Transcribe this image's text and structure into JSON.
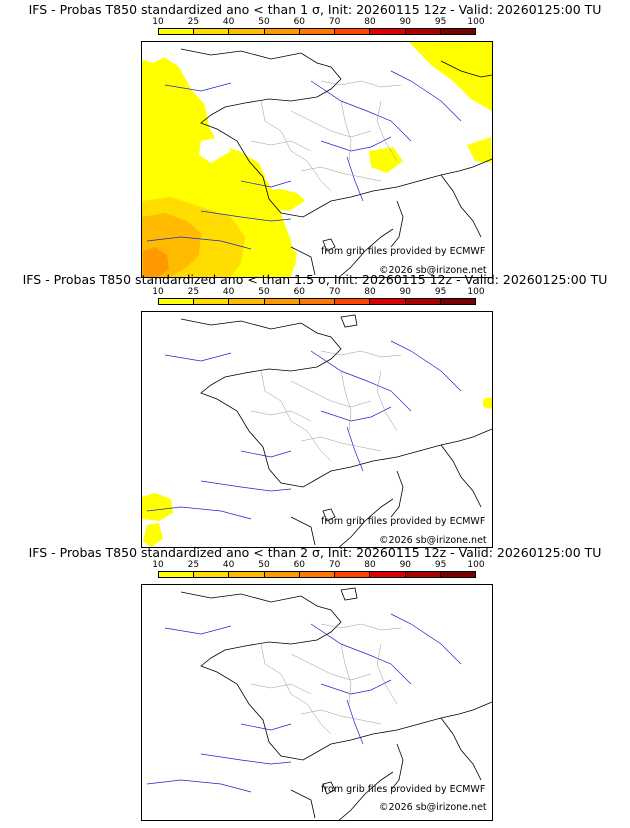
{
  "colorbar": {
    "ticks": [
      "10",
      "25",
      "40",
      "50",
      "60",
      "70",
      "80",
      "90",
      "95",
      "100"
    ],
    "colors": [
      "#ffff00",
      "#ffdd00",
      "#ffbb00",
      "#ff9900",
      "#ff7700",
      "#ff4400",
      "#dd0000",
      "#aa0000",
      "#770000"
    ]
  },
  "credits": {
    "source": "from grib files provided by ECMWF",
    "copyright": "©2026 sb@irizone.net"
  },
  "panels": [
    {
      "title": "IFS - Probas T850  standardized ano < than 1 σ, Init: 20260115 12z - Valid: 20260125:00 TU",
      "threshold": "1 σ"
    },
    {
      "title": "IFS - Probas T850  standardized ano < than 1.5 σ, Init: 20260115 12z - Valid: 20260125:00 TU",
      "threshold": "1.5 σ"
    },
    {
      "title": "IFS - Probas T850  standardized ano < than 2 σ, Init: 20260115 12z - Valid: 20260125:00 TU",
      "threshold": "2 σ"
    }
  ]
}
